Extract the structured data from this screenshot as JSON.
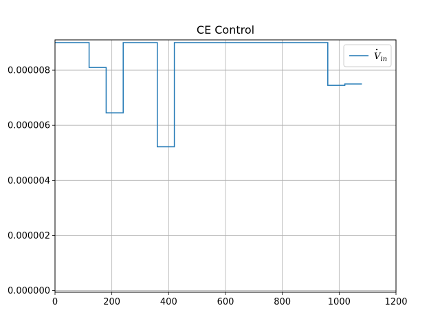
{
  "chart_data": {
    "type": "line",
    "step": "post",
    "title": "CE Control",
    "xlabel": "",
    "ylabel": "",
    "xlim": [
      0,
      1200
    ],
    "ylim": [
      -6e-08,
      9.1e-06
    ],
    "grid": true,
    "legend": {
      "placement": "top-right"
    },
    "x_ticks": [
      0,
      200,
      400,
      600,
      800,
      1000,
      1200
    ],
    "x_tick_labels": [
      "0",
      "200",
      "400",
      "600",
      "800",
      "1000",
      "1200"
    ],
    "y_ticks": [
      0,
      2e-06,
      4e-06,
      6e-06,
      8e-06
    ],
    "y_tick_labels": [
      "0.000000",
      "0.000002",
      "0.000004",
      "0.000006",
      "0.000008"
    ],
    "series": [
      {
        "name": "V̇in",
        "name_base": "V",
        "name_sub": "in",
        "color": "#1f77b4",
        "x": [
          0,
          120,
          180,
          240,
          360,
          420,
          960,
          1020,
          1080
        ],
        "y": [
          9e-06,
          8.1e-06,
          6.45e-06,
          9e-06,
          5.22e-06,
          9e-06,
          7.45e-06,
          7.5e-06,
          7.5e-06
        ]
      }
    ]
  }
}
